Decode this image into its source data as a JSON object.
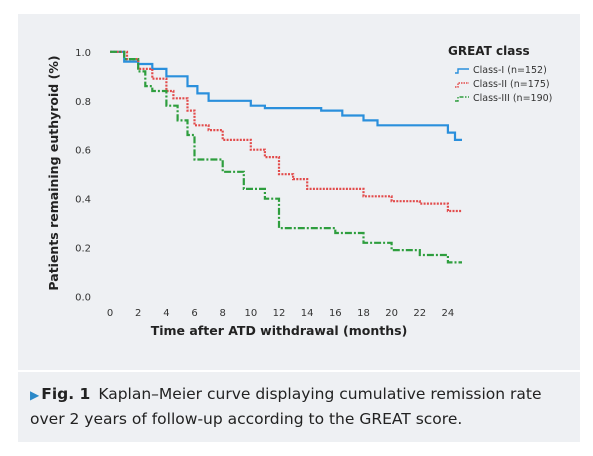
{
  "caption": {
    "marker": "▶",
    "label": "Fig. 1",
    "text": "Kaplan–Meier curve displaying cumulative remission rate over 2 years of follow-up according to the GREAT score."
  },
  "chart_data": {
    "type": "line",
    "xlabel": "Time after ATD withdrawal (months)",
    "ylabel": "Patients remaining euthyroid (%)",
    "xlim": [
      -1,
      25
    ],
    "ylim": [
      -0.03,
      1.04
    ],
    "xticks": [
      0,
      2,
      4,
      6,
      8,
      10,
      12,
      14,
      16,
      18,
      20,
      22,
      24
    ],
    "yticks": [
      0.0,
      0.2,
      0.4,
      0.6,
      0.8,
      1.0
    ],
    "ytick_labels": [
      "0.0",
      "0.2",
      "0.4",
      "0.6",
      "0.8",
      "1.0"
    ],
    "grid": false,
    "legend": {
      "title": "GREAT class",
      "position": "top-right"
    },
    "series": [
      {
        "name": "Class-I (n=152)",
        "color": "#2a8fdc",
        "dash": "solid",
        "points": [
          [
            0,
            1.0
          ],
          [
            1,
            1.0
          ],
          [
            1,
            0.96
          ],
          [
            2,
            0.96
          ],
          [
            2,
            0.95
          ],
          [
            3,
            0.95
          ],
          [
            3,
            0.93
          ],
          [
            4,
            0.93
          ],
          [
            4,
            0.9
          ],
          [
            5.5,
            0.9
          ],
          [
            5.5,
            0.86
          ],
          [
            6.2,
            0.86
          ],
          [
            6.2,
            0.83
          ],
          [
            7,
            0.83
          ],
          [
            7,
            0.8
          ],
          [
            10,
            0.8
          ],
          [
            10,
            0.78
          ],
          [
            11,
            0.78
          ],
          [
            11,
            0.77
          ],
          [
            15,
            0.77
          ],
          [
            15,
            0.76
          ],
          [
            16.5,
            0.76
          ],
          [
            16.5,
            0.74
          ],
          [
            18,
            0.74
          ],
          [
            18,
            0.72
          ],
          [
            19,
            0.72
          ],
          [
            19,
            0.7
          ],
          [
            24,
            0.7
          ],
          [
            24,
            0.67
          ],
          [
            24.5,
            0.67
          ],
          [
            24.5,
            0.64
          ],
          [
            25,
            0.64
          ]
        ]
      },
      {
        "name": "Class-II (n=175)",
        "color": "#e24b4b",
        "dash": "dotted",
        "points": [
          [
            0,
            1.0
          ],
          [
            1.2,
            1.0
          ],
          [
            1.2,
            0.97
          ],
          [
            2,
            0.97
          ],
          [
            2,
            0.93
          ],
          [
            3,
            0.93
          ],
          [
            3,
            0.89
          ],
          [
            4,
            0.89
          ],
          [
            4,
            0.84
          ],
          [
            4.5,
            0.84
          ],
          [
            4.5,
            0.81
          ],
          [
            5.5,
            0.81
          ],
          [
            5.5,
            0.76
          ],
          [
            6,
            0.76
          ],
          [
            6,
            0.7
          ],
          [
            7,
            0.7
          ],
          [
            7,
            0.68
          ],
          [
            8,
            0.68
          ],
          [
            8,
            0.64
          ],
          [
            10,
            0.64
          ],
          [
            10,
            0.6
          ],
          [
            11,
            0.6
          ],
          [
            11,
            0.57
          ],
          [
            12,
            0.57
          ],
          [
            12,
            0.5
          ],
          [
            13,
            0.5
          ],
          [
            13,
            0.48
          ],
          [
            14,
            0.48
          ],
          [
            14,
            0.44
          ],
          [
            18,
            0.44
          ],
          [
            18,
            0.41
          ],
          [
            20,
            0.41
          ],
          [
            20,
            0.39
          ],
          [
            22,
            0.39
          ],
          [
            22,
            0.38
          ],
          [
            24,
            0.38
          ],
          [
            24,
            0.35
          ],
          [
            25,
            0.35
          ]
        ]
      },
      {
        "name": "Class-III (n=190)",
        "color": "#2e9e3e",
        "dash": "dashdot",
        "points": [
          [
            0,
            1.0
          ],
          [
            1,
            1.0
          ],
          [
            1,
            0.97
          ],
          [
            2,
            0.97
          ],
          [
            2,
            0.92
          ],
          [
            2.5,
            0.92
          ],
          [
            2.5,
            0.86
          ],
          [
            3,
            0.86
          ],
          [
            3,
            0.84
          ],
          [
            4,
            0.84
          ],
          [
            4,
            0.78
          ],
          [
            4.8,
            0.78
          ],
          [
            4.8,
            0.72
          ],
          [
            5.5,
            0.72
          ],
          [
            5.5,
            0.66
          ],
          [
            6,
            0.66
          ],
          [
            6,
            0.56
          ],
          [
            8,
            0.56
          ],
          [
            8,
            0.51
          ],
          [
            9.5,
            0.51
          ],
          [
            9.5,
            0.44
          ],
          [
            11,
            0.44
          ],
          [
            11,
            0.4
          ],
          [
            12,
            0.4
          ],
          [
            12,
            0.28
          ],
          [
            16,
            0.28
          ],
          [
            16,
            0.26
          ],
          [
            18,
            0.26
          ],
          [
            18,
            0.22
          ],
          [
            20,
            0.22
          ],
          [
            20,
            0.19
          ],
          [
            22,
            0.19
          ],
          [
            22,
            0.17
          ],
          [
            24,
            0.17
          ],
          [
            24,
            0.14
          ],
          [
            25,
            0.14
          ]
        ]
      }
    ]
  }
}
